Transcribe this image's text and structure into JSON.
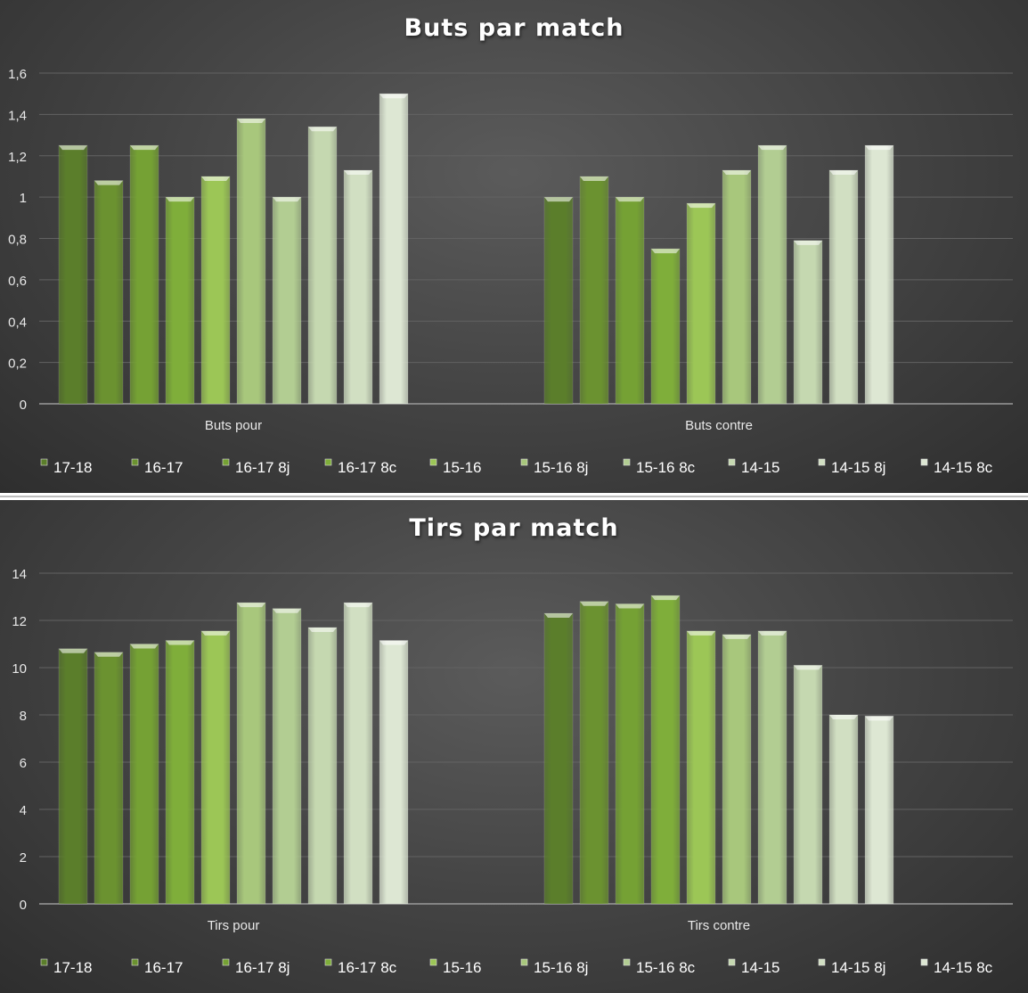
{
  "chart_data": [
    {
      "type": "bar",
      "title": "Buts par match",
      "categories": [
        "Buts pour",
        "Buts contre"
      ],
      "ylim": [
        0,
        1.6
      ],
      "yticks": [
        "0",
        "0,2",
        "0,4",
        "0,6",
        "0,8",
        "1",
        "1,2",
        "1,4",
        "1,6"
      ],
      "grid": true,
      "legend_position": "bottom",
      "series": [
        {
          "name": "17-18",
          "values": [
            1.25,
            1.0
          ]
        },
        {
          "name": "16-17",
          "values": [
            1.08,
            1.1
          ]
        },
        {
          "name": "16-17 8j",
          "values": [
            1.25,
            1.0
          ]
        },
        {
          "name": "16-17 8c",
          "values": [
            1.0,
            0.75
          ]
        },
        {
          "name": "15-16",
          "values": [
            1.1,
            0.97
          ]
        },
        {
          "name": "15-16 8j",
          "values": [
            1.38,
            1.13
          ]
        },
        {
          "name": "15-16 8c",
          "values": [
            1.0,
            1.25
          ]
        },
        {
          "name": "14-15",
          "values": [
            1.34,
            0.79
          ]
        },
        {
          "name": "14-15 8j",
          "values": [
            1.13,
            1.13
          ]
        },
        {
          "name": "14-15 8c",
          "values": [
            1.5,
            1.25
          ]
        }
      ]
    },
    {
      "type": "bar",
      "title": "Tirs par match",
      "categories": [
        "Tirs pour",
        "Tirs contre"
      ],
      "ylim": [
        0,
        14
      ],
      "yticks": [
        "0",
        "2",
        "4",
        "6",
        "8",
        "10",
        "12",
        "14"
      ],
      "grid": true,
      "legend_position": "bottom",
      "series": [
        {
          "name": "17-18",
          "values": [
            10.8,
            12.3
          ]
        },
        {
          "name": "16-17",
          "values": [
            10.65,
            12.8
          ]
        },
        {
          "name": "16-17 8j",
          "values": [
            11.0,
            12.7
          ]
        },
        {
          "name": "16-17 8c",
          "values": [
            11.15,
            13.05
          ]
        },
        {
          "name": "15-16",
          "values": [
            11.55,
            11.55
          ]
        },
        {
          "name": "15-16 8j",
          "values": [
            12.75,
            11.4
          ]
        },
        {
          "name": "15-16 8c",
          "values": [
            12.5,
            11.55
          ]
        },
        {
          "name": "14-15",
          "values": [
            11.7,
            10.1
          ]
        },
        {
          "name": "14-15 8j",
          "values": [
            12.75,
            8.0
          ]
        },
        {
          "name": "14-15 8c",
          "values": [
            11.15,
            7.95
          ]
        }
      ]
    }
  ]
}
